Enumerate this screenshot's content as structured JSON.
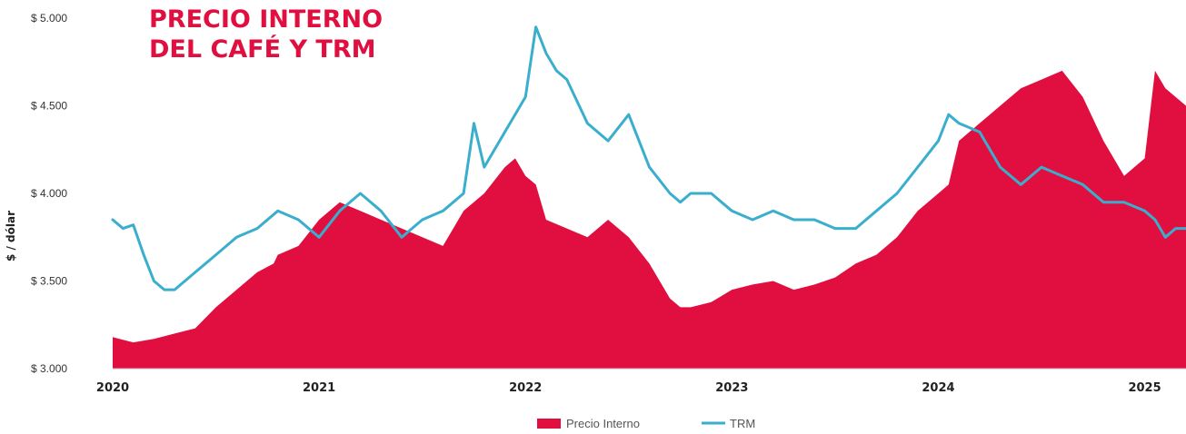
{
  "chart_data": {
    "type": "area",
    "title_lines": [
      "PRECIO INTERNO",
      "DEL CAFÉ Y TRM"
    ],
    "ylabel": "$ / dólar",
    "ylim": [
      3000,
      5000
    ],
    "yticks": [
      {
        "value": 3000,
        "label": "$ 3.000"
      },
      {
        "value": 3500,
        "label": "$ 3.500"
      },
      {
        "value": 4000,
        "label": "$ 4.000"
      },
      {
        "value": 4500,
        "label": "$ 4.500"
      },
      {
        "value": 5000,
        "label": "$ 5.000"
      }
    ],
    "xlim": [
      2020.0,
      2025.2
    ],
    "xticks": [
      {
        "value": 2020,
        "label": "2020"
      },
      {
        "value": 2021,
        "label": "2021"
      },
      {
        "value": 2022,
        "label": "2022"
      },
      {
        "value": 2023,
        "label": "2023"
      },
      {
        "value": 2024,
        "label": "2024"
      },
      {
        "value": 2025,
        "label": "2025"
      }
    ],
    "grid": false,
    "legend_position": "bottom-center",
    "series": [
      {
        "name": "Precio Interno",
        "type": "area",
        "color": "#e00f3f",
        "x": [
          2020.0,
          2020.1,
          2020.2,
          2020.3,
          2020.4,
          2020.5,
          2020.6,
          2020.7,
          2020.78,
          2020.8,
          2020.9,
          2021.0,
          2021.1,
          2021.2,
          2021.3,
          2021.4,
          2021.5,
          2021.6,
          2021.7,
          2021.8,
          2021.9,
          2021.95,
          2022.0,
          2022.05,
          2022.1,
          2022.2,
          2022.3,
          2022.4,
          2022.5,
          2022.6,
          2022.7,
          2022.75,
          2022.8,
          2022.9,
          2023.0,
          2023.1,
          2023.2,
          2023.3,
          2023.4,
          2023.5,
          2023.6,
          2023.7,
          2023.8,
          2023.9,
          2024.0,
          2024.05,
          2024.1,
          2024.2,
          2024.3,
          2024.4,
          2024.5,
          2024.6,
          2024.7,
          2024.8,
          2024.9,
          2025.0,
          2025.05,
          2025.1,
          2025.2
        ],
        "values": [
          3180,
          3150,
          3170,
          3200,
          3230,
          3350,
          3450,
          3550,
          3600,
          3650,
          3700,
          3850,
          3950,
          3900,
          3850,
          3800,
          3750,
          3700,
          3900,
          4000,
          4150,
          4200,
          4100,
          4050,
          3850,
          3800,
          3750,
          3850,
          3750,
          3600,
          3400,
          3350,
          3350,
          3380,
          3450,
          3480,
          3500,
          3450,
          3480,
          3520,
          3600,
          3650,
          3750,
          3900,
          4000,
          4050,
          4300,
          4400,
          4500,
          4600,
          4650,
          4700,
          4550,
          4300,
          4100,
          4200,
          4700,
          4600,
          4500
        ]
      },
      {
        "name": "TRM",
        "type": "line",
        "color": "#3aaecd",
        "x": [
          2020.0,
          2020.05,
          2020.1,
          2020.15,
          2020.2,
          2020.25,
          2020.3,
          2020.4,
          2020.5,
          2020.6,
          2020.7,
          2020.8,
          2020.9,
          2021.0,
          2021.1,
          2021.2,
          2021.3,
          2021.4,
          2021.5,
          2021.6,
          2021.7,
          2021.75,
          2021.8,
          2021.9,
          2022.0,
          2022.05,
          2022.1,
          2022.15,
          2022.2,
          2022.3,
          2022.4,
          2022.5,
          2022.6,
          2022.7,
          2022.75,
          2022.8,
          2022.9,
          2023.0,
          2023.1,
          2023.2,
          2023.3,
          2023.4,
          2023.5,
          2023.6,
          2023.7,
          2023.8,
          2023.9,
          2024.0,
          2024.05,
          2024.1,
          2024.2,
          2024.3,
          2024.4,
          2024.5,
          2024.6,
          2024.7,
          2024.8,
          2024.9,
          2025.0,
          2025.05,
          2025.1,
          2025.15,
          2025.2
        ],
        "values": [
          3850,
          3800,
          3820,
          3650,
          3500,
          3450,
          3450,
          3550,
          3650,
          3750,
          3800,
          3900,
          3850,
          3750,
          3900,
          4000,
          3900,
          3750,
          3850,
          3900,
          4000,
          4400,
          4150,
          4350,
          4550,
          4950,
          4800,
          4700,
          4650,
          4400,
          4300,
          4450,
          4150,
          4000,
          3950,
          4000,
          4000,
          3900,
          3850,
          3900,
          3850,
          3850,
          3800,
          3800,
          3900,
          4000,
          4150,
          4300,
          4450,
          4400,
          4350,
          4150,
          4050,
          4150,
          4100,
          4050,
          3950,
          3950,
          3900,
          3850,
          3750,
          3800,
          3800
        ]
      }
    ]
  }
}
